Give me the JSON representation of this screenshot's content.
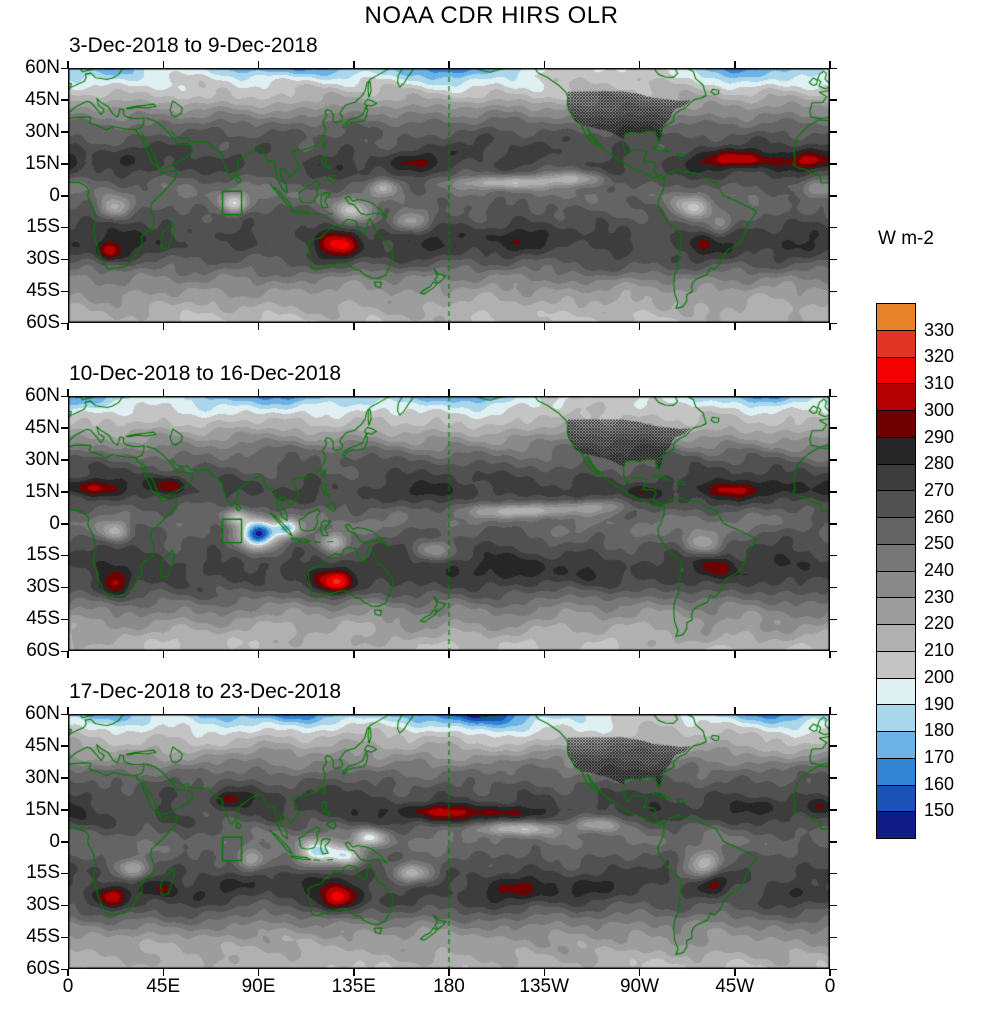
{
  "title": "NOAA CDR HIRS OLR",
  "colorbar": {
    "title": "W m-2",
    "labels": [
      330,
      320,
      310,
      300,
      290,
      280,
      270,
      260,
      250,
      240,
      230,
      220,
      210,
      200,
      190,
      180,
      170,
      160,
      150
    ],
    "colors": [
      "#e8832b",
      "#e03424",
      "#f40000",
      "#b50000",
      "#700000",
      "#262626",
      "#3d3d3d",
      "#515151",
      "#646464",
      "#777777",
      "#8a8a8a",
      "#9d9d9d",
      "#b0b0b0",
      "#c4c4c4",
      "#dff0f2",
      "#aad6ec",
      "#6cb2e4",
      "#3184d2",
      "#1c51b8",
      "#131c86"
    ]
  },
  "axes": {
    "lat_labels": [
      "60N",
      "45N",
      "30N",
      "15N",
      "0",
      "15S",
      "30S",
      "45S",
      "60S"
    ],
    "lat_values": [
      60,
      45,
      30,
      15,
      0,
      -15,
      -30,
      -45,
      -60
    ],
    "lon_labels": [
      "0",
      "45E",
      "90E",
      "135E",
      "180",
      "135W",
      "90W",
      "45W",
      "0"
    ],
    "lon_values": [
      0,
      45,
      90,
      135,
      180,
      225,
      270,
      315,
      360
    ]
  },
  "chart_data": {
    "type": "heatmap",
    "units": "W m-2",
    "lon_range": [
      0,
      360
    ],
    "lat_range": [
      -60,
      60
    ],
    "levels": [
      150,
      160,
      170,
      180,
      190,
      200,
      210,
      220,
      230,
      240,
      250,
      260,
      270,
      280,
      290,
      300,
      310,
      320,
      330
    ],
    "reference_line_lon": 180,
    "roi_box": {
      "lon_min": 73,
      "lon_max": 82,
      "lat_min": -9,
      "lat_max": 2
    },
    "outline_color": "#007c00",
    "base_profile": [
      [
        60,
        198
      ],
      [
        52,
        206
      ],
      [
        46,
        215
      ],
      [
        40,
        232
      ],
      [
        33,
        252
      ],
      [
        27,
        263
      ],
      [
        21,
        270
      ],
      [
        15,
        272
      ],
      [
        10,
        268
      ],
      [
        5,
        258
      ],
      [
        0,
        252
      ],
      [
        -4,
        256
      ],
      [
        -9,
        264
      ],
      [
        -14,
        270
      ],
      [
        -19,
        274
      ],
      [
        -24,
        273
      ],
      [
        -29,
        267
      ],
      [
        -34,
        256
      ],
      [
        -40,
        240
      ],
      [
        -46,
        228
      ],
      [
        -52,
        220
      ],
      [
        -60,
        212
      ]
    ],
    "panels": [
      {
        "label": "3-Dec-2018 to 9-Dec-2018",
        "seed": 0.7,
        "anomalies": [
          [
            100,
            63,
            -38,
            42,
            8
          ],
          [
            185,
            62,
            -40,
            26,
            8
          ],
          [
            322,
            62,
            -35,
            22,
            8
          ],
          [
            15,
            60,
            -20,
            18,
            7
          ],
          [
            78,
            -4,
            -60,
            7,
            5
          ],
          [
            135,
            -7,
            -55,
            10,
            6
          ],
          [
            162,
            -12,
            -45,
            9,
            5
          ],
          [
            150,
            4,
            -40,
            7,
            4
          ],
          [
            205,
            6,
            -48,
            22,
            3.5
          ],
          [
            238,
            8,
            -42,
            16,
            3.5
          ],
          [
            295,
            -6,
            -50,
            9,
            6
          ],
          [
            308,
            -14,
            -35,
            8,
            5
          ],
          [
            22,
            -6,
            -45,
            7,
            5
          ],
          [
            356,
            4,
            -25,
            8,
            4
          ],
          [
            128,
            -23,
            38,
            10,
            6
          ],
          [
            20,
            -26,
            30,
            6,
            5
          ],
          [
            318,
            17,
            30,
            22,
            4
          ],
          [
            352,
            16,
            26,
            10,
            4
          ],
          [
            62,
            14,
            14,
            12,
            4
          ],
          [
            215,
            -20,
            11,
            28,
            7
          ],
          [
            165,
            16,
            13,
            12,
            4
          ],
          [
            300,
            -22,
            14,
            7,
            5
          ]
        ]
      },
      {
        "label": "10-Dec-2018 to 16-Dec-2018",
        "seed": 3.0,
        "anomalies": [
          [
            95,
            63,
            -40,
            42,
            8
          ],
          [
            185,
            62,
            -38,
            26,
            8
          ],
          [
            325,
            62,
            -33,
            22,
            8
          ],
          [
            10,
            60,
            -20,
            18,
            7
          ],
          [
            90,
            -5,
            -105,
            9,
            6.5
          ],
          [
            104,
            -2,
            -60,
            6,
            4
          ],
          [
            80,
            3,
            -45,
            7,
            4
          ],
          [
            125,
            -9,
            -45,
            7,
            5
          ],
          [
            172,
            -13,
            -40,
            9,
            5
          ],
          [
            215,
            6,
            -50,
            22,
            3.5
          ],
          [
            247,
            8,
            -40,
            15,
            3.5
          ],
          [
            300,
            -9,
            -50,
            9,
            6
          ],
          [
            22,
            -4,
            -45,
            7,
            5
          ],
          [
            127,
            -27,
            48,
            9,
            6
          ],
          [
            22,
            -28,
            34,
            7,
            6
          ],
          [
            12,
            17,
            30,
            16,
            4
          ],
          [
            48,
            18,
            24,
            9,
            4
          ],
          [
            318,
            16,
            26,
            18,
            4
          ],
          [
            272,
            15,
            18,
            8,
            3.5
          ],
          [
            212,
            -20,
            11,
            26,
            7
          ],
          [
            305,
            -21,
            18,
            8,
            5
          ],
          [
            165,
            15,
            12,
            12,
            4
          ]
        ]
      },
      {
        "label": "17-Dec-2018 to 23-Dec-2018",
        "seed": 5.3,
        "anomalies": [
          [
            105,
            63,
            -42,
            40,
            8
          ],
          [
            192,
            61,
            -48,
            28,
            8
          ],
          [
            328,
            62,
            -35,
            22,
            8
          ],
          [
            15,
            60,
            -22,
            18,
            7
          ],
          [
            118,
            -5,
            -75,
            8,
            6
          ],
          [
            131,
            -7,
            -65,
            7,
            5
          ],
          [
            143,
            2,
            -55,
            7,
            4
          ],
          [
            87,
            -9,
            -40,
            7,
            5
          ],
          [
            163,
            -15,
            -45,
            10,
            5
          ],
          [
            210,
            6,
            -48,
            22,
            3.5
          ],
          [
            300,
            -11,
            -50,
            9,
            6
          ],
          [
            30,
            -13,
            -40,
            8,
            5
          ],
          [
            250,
            8,
            -35,
            12,
            3.5
          ],
          [
            128,
            -27,
            52,
            10,
            6
          ],
          [
            20,
            -26,
            30,
            7,
            5
          ],
          [
            45,
            -23,
            18,
            6,
            4
          ],
          [
            178,
            14,
            30,
            22,
            4
          ],
          [
            210,
            13,
            24,
            16,
            4
          ],
          [
            305,
            -20,
            22,
            8,
            5
          ],
          [
            77,
            20,
            24,
            8,
            4
          ],
          [
            355,
            16,
            18,
            10,
            4
          ],
          [
            330,
            17,
            16,
            12,
            4
          ],
          [
            215,
            -22,
            12,
            24,
            7
          ]
        ]
      }
    ]
  }
}
